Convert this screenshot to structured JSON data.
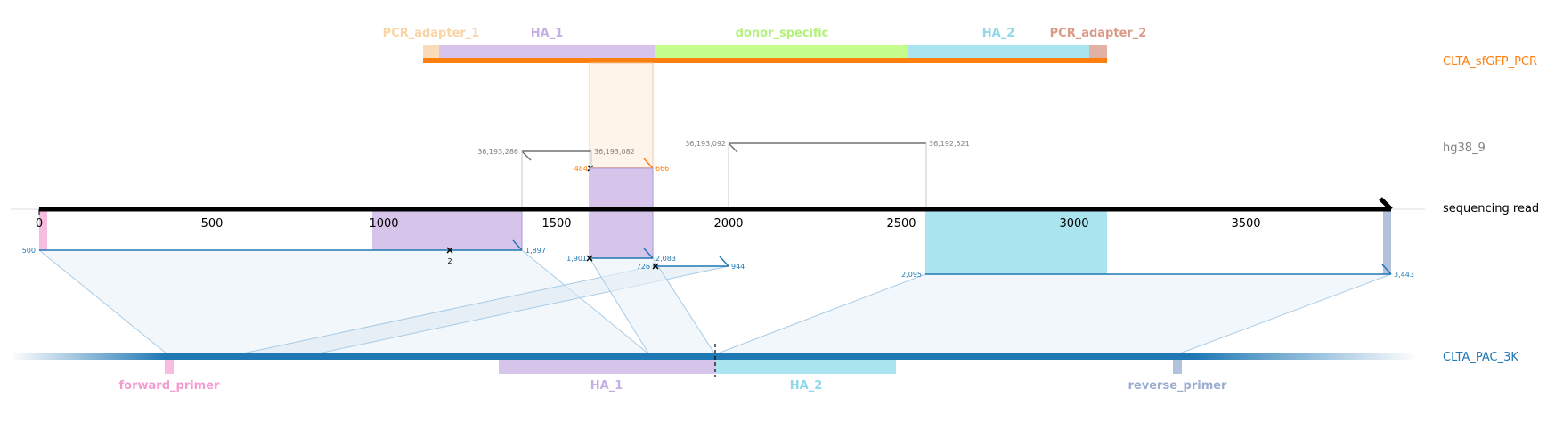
{
  "references": {
    "pcr": {
      "name": "CLTA_sfGFP_PCR",
      "color": "#ff7f0e"
    },
    "genome": {
      "name": "hg38_9",
      "color": "#808080"
    },
    "read": {
      "name": "sequencing read",
      "color": "#000000"
    },
    "plasmid": {
      "name": "CLTA_PAC_3K",
      "color": "#1f77b4"
    }
  },
  "pcr_features": [
    {
      "name": "PCR_adapter_1",
      "color": "#f9dcb9",
      "label_color": "#f9d4a6"
    },
    {
      "name": "HA_1",
      "color": "#d6c4ea",
      "label_color": "#c5b0e3"
    },
    {
      "name": "donor_specific",
      "color": "#c4fd8c",
      "label_color": "#b3f27a"
    },
    {
      "name": "HA_2",
      "color": "#aae4ef",
      "label_color": "#8fd8ea"
    },
    {
      "name": "PCR_adapter_2",
      "color": "#e0b1a4",
      "label_color": "#d99a86"
    }
  ],
  "plasmid_features": [
    {
      "name": "forward_primer",
      "color": "#f7bde0",
      "label_color": "#f59bd0"
    },
    {
      "name": "HA_1",
      "color": "#d6c4ea",
      "label_color": "#c5b0e3"
    },
    {
      "name": "HA_2",
      "color": "#aae4ef",
      "label_color": "#8fd8ea"
    },
    {
      "name": "reverse_primer",
      "color": "#b3c2dc",
      "label_color": "#9badd0"
    }
  ],
  "read_axis": {
    "min": 0,
    "max": 3900,
    "ticks": [
      "0",
      "500",
      "1000",
      "1500",
      "2000",
      "2500",
      "3000",
      "3500"
    ],
    "tick_values": [
      0,
      500,
      1000,
      1500,
      2000,
      2500,
      3000,
      3500
    ]
  },
  "read_highlights": [
    {
      "feature": "forward_primer",
      "start": 0,
      "end": 25,
      "color": "#f7bde0"
    },
    {
      "feature": "HA_1",
      "start": 965,
      "end": 1400,
      "color": "#d6c4ea"
    },
    {
      "feature": "HA_1",
      "start": 1600,
      "end": 1780,
      "color": "#d6c4ea"
    },
    {
      "feature": "HA_2",
      "start": 2565,
      "end": 3090,
      "color": "#aae4ef"
    },
    {
      "feature": "reverse_primer",
      "start": 3880,
      "end": 3900,
      "color": "#b3c2dc"
    }
  ],
  "alignments": [
    {
      "target": "genome",
      "read_start": 1400,
      "read_end": 1600,
      "labels": [
        "36,193,286",
        "36,193,082"
      ]
    },
    {
      "target": "genome",
      "read_start": 2000,
      "read_end": 2570,
      "labels": [
        "36,193,092",
        "36,192,521"
      ]
    },
    {
      "target": "pcr",
      "read_start": 1600,
      "read_end": 1780,
      "labels": [
        "484",
        "666"
      ],
      "marker": "x"
    },
    {
      "target": "plasmid",
      "read_start": 0,
      "read_end": 1400,
      "labels": [
        "500",
        "1,897"
      ],
      "edit_label": "2"
    },
    {
      "target": "plasmid",
      "read_start": 1600,
      "read_end": 1780,
      "labels": [
        "1,901",
        "2,083"
      ]
    },
    {
      "target": "plasmid",
      "read_start": 1780,
      "read_end": 2000,
      "labels": [
        "726",
        "944"
      ],
      "marker": "x"
    },
    {
      "target": "plasmid",
      "read_start": 2565,
      "read_end": 3880,
      "labels": [
        "2,095",
        "3,443"
      ]
    }
  ]
}
